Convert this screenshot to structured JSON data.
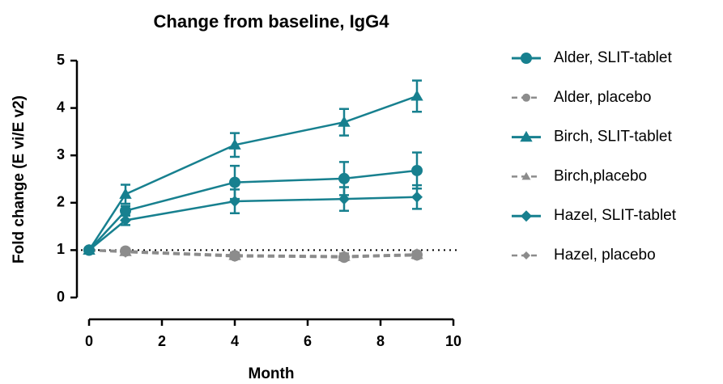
{
  "chart_data": {
    "type": "line",
    "title": "Change from baseline, IgG4",
    "x_label": "Month",
    "y_label": "Fold change (E vi/E v2)",
    "x": [
      0,
      1,
      4,
      7,
      9
    ],
    "xlim": [
      0,
      10
    ],
    "xticks": [
      0,
      2,
      4,
      6,
      8,
      10
    ],
    "ylim": [
      0,
      5
    ],
    "yticks": [
      0,
      1,
      2,
      3,
      4,
      5
    ],
    "reference_line": 1,
    "legend": "right",
    "series": [
      {
        "name": "Alder, SLIT-tablet",
        "color": "#17808f",
        "marker": "circle",
        "dashed": false,
        "values": [
          1.0,
          1.83,
          2.43,
          2.51,
          2.68
        ],
        "errors": [
          0.05,
          0.1,
          0.35,
          0.35,
          0.38
        ]
      },
      {
        "name": "Alder, placebo",
        "color": "#8c8c8c",
        "marker": "circle",
        "dashed": true,
        "values": [
          1.0,
          0.98,
          0.88,
          0.85,
          0.9
        ],
        "errors": [
          0.04,
          0.05,
          0.06,
          0.06,
          0.06
        ]
      },
      {
        "name": "Birch, SLIT-tablet",
        "color": "#17808f",
        "marker": "triangle",
        "dashed": false,
        "values": [
          1.0,
          2.18,
          3.22,
          3.7,
          4.25
        ],
        "errors": [
          0.05,
          0.2,
          0.25,
          0.28,
          0.33
        ]
      },
      {
        "name": "Birch,placebo",
        "color": "#8c8c8c",
        "marker": "triangle",
        "dashed": true,
        "values": [
          1.0,
          0.97,
          0.89,
          0.87,
          0.91
        ],
        "errors": [
          0.04,
          0.05,
          0.06,
          0.06,
          0.06
        ]
      },
      {
        "name": "Hazel, SLIT-tablet",
        "color": "#17808f",
        "marker": "diamond",
        "dashed": false,
        "values": [
          1.0,
          1.63,
          2.03,
          2.08,
          2.12
        ],
        "errors": [
          0.05,
          0.1,
          0.25,
          0.25,
          0.25
        ]
      },
      {
        "name": "Hazel, placebo",
        "color": "#8c8c8c",
        "marker": "diamond",
        "dashed": true,
        "values": [
          1.0,
          0.96,
          0.87,
          0.86,
          0.89
        ],
        "errors": [
          0.04,
          0.05,
          0.06,
          0.06,
          0.06
        ]
      }
    ]
  }
}
